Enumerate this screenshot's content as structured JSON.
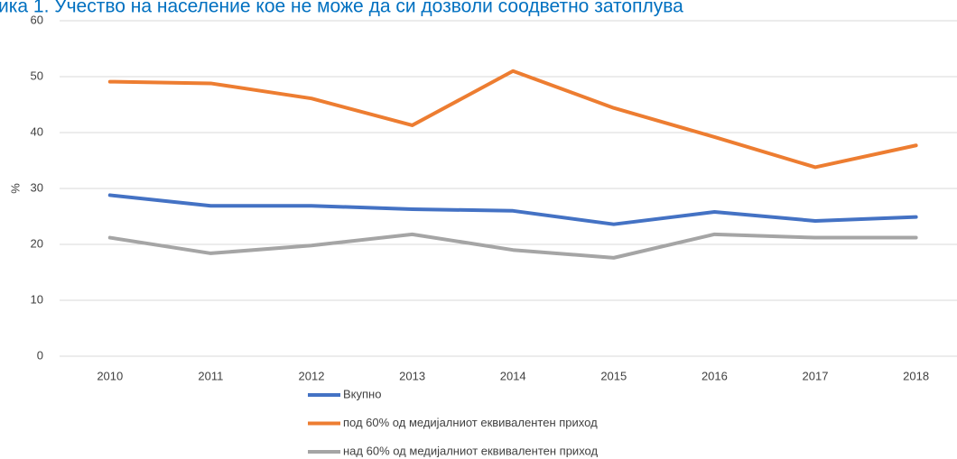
{
  "chart_data": {
    "type": "line",
    "title": "ика 1. Учество на население кое не може да си дозволи соодветно затоплува",
    "y_label": "%",
    "categories": [
      "2010",
      "2011",
      "2012",
      "2013",
      "2014",
      "2015",
      "2016",
      "2017",
      "2018"
    ],
    "series": [
      {
        "name": "Вкупно",
        "color": "#4472c4",
        "values": [
          28.8,
          26.9,
          26.9,
          26.3,
          26.0,
          23.6,
          25.8,
          24.2,
          24.9
        ]
      },
      {
        "name": "под 60% од медијалниот еквивалентен приход",
        "color": "#ed7d31",
        "values": [
          49.1,
          48.8,
          46.1,
          41.3,
          51.0,
          44.4,
          39.2,
          33.8,
          37.7
        ]
      },
      {
        "name": "над 60% од медијалниот еквивалентен приход",
        "color": "#a5a5a5",
        "values": [
          21.2,
          18.4,
          19.8,
          21.8,
          19.0,
          17.6,
          21.8,
          21.2,
          21.2
        ]
      }
    ],
    "ylim": [
      0,
      60
    ],
    "yticks": [
      0,
      10,
      20,
      30,
      40,
      50,
      60
    ],
    "grid": true,
    "legend": "bottom"
  }
}
